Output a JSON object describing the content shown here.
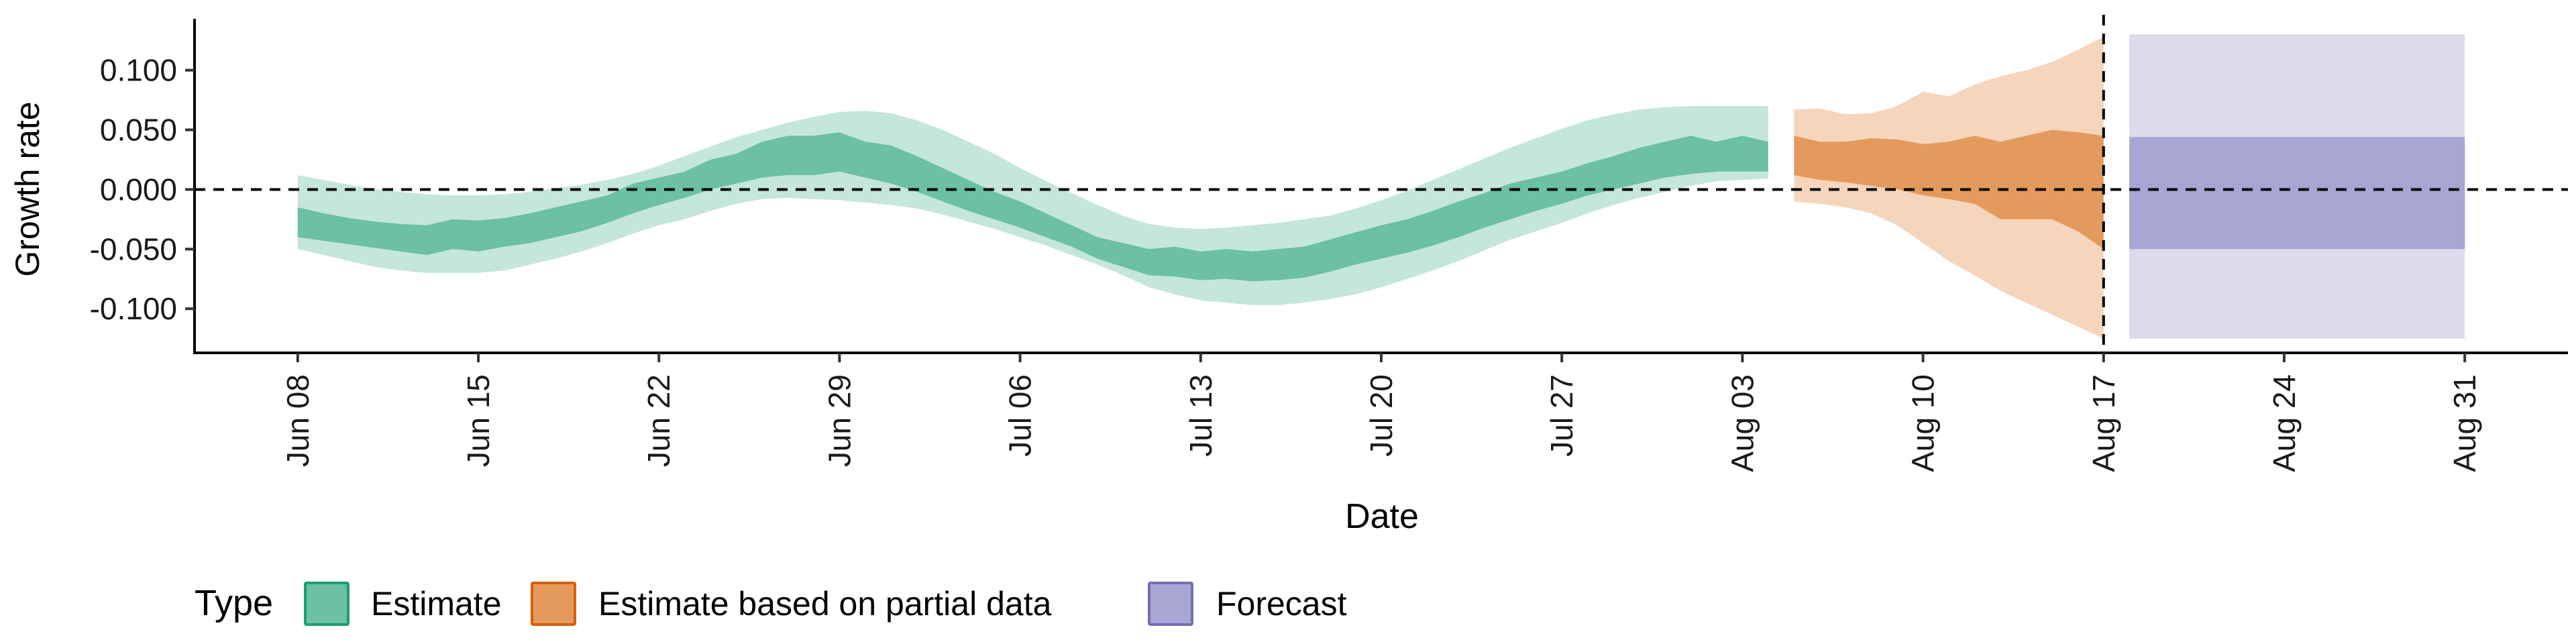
{
  "chart_data": {
    "type": "area",
    "xlabel": "Date",
    "ylabel": "Growth rate",
    "x_ticks": [
      "Jun 08",
      "Jun 15",
      "Jun 22",
      "Jun 29",
      "Jul 06",
      "Jul 13",
      "Jul 20",
      "Jul 27",
      "Aug 03",
      "Aug 10",
      "Aug 17",
      "Aug 24",
      "Aug 31"
    ],
    "y_ticks": [
      "0.100",
      "0.050",
      "0.000",
      "-0.050",
      "-0.100"
    ],
    "y_tick_values": [
      0.1,
      0.05,
      0.0,
      -0.05,
      -0.1
    ],
    "xlim": [
      "2020-06-04",
      "2020-09-04"
    ],
    "ylim": [
      -0.137,
      0.142
    ],
    "reference_lines": {
      "horizontal_y": 0.0,
      "vertical_x": "2020-08-17",
      "style": "dashed"
    },
    "legend": {
      "title": "Type",
      "position": "bottom-left",
      "items": [
        {
          "label": "Estimate",
          "fill": "#6cc0a4",
          "stroke": "#1b9e77"
        },
        {
          "label": "Estimate based on partial data",
          "fill": "#e59a5d",
          "stroke": "#d95f02"
        },
        {
          "label": "Forecast",
          "fill": "#a8a6d3",
          "stroke": "#7570b3"
        }
      ]
    },
    "series": [
      {
        "name": "Estimate",
        "colors": {
          "outer": "#c5e6dc",
          "inner": "#6cc0a4"
        },
        "x": [
          "2020-06-08",
          "2020-06-09",
          "2020-06-10",
          "2020-06-11",
          "2020-06-12",
          "2020-06-13",
          "2020-06-14",
          "2020-06-15",
          "2020-06-16",
          "2020-06-17",
          "2020-06-18",
          "2020-06-19",
          "2020-06-20",
          "2020-06-21",
          "2020-06-22",
          "2020-06-23",
          "2020-06-24",
          "2020-06-25",
          "2020-06-26",
          "2020-06-27",
          "2020-06-28",
          "2020-06-29",
          "2020-06-30",
          "2020-07-01",
          "2020-07-02",
          "2020-07-03",
          "2020-07-04",
          "2020-07-05",
          "2020-07-06",
          "2020-07-07",
          "2020-07-08",
          "2020-07-09",
          "2020-07-10",
          "2020-07-11",
          "2020-07-12",
          "2020-07-13",
          "2020-07-14",
          "2020-07-15",
          "2020-07-16",
          "2020-07-17",
          "2020-07-18",
          "2020-07-19",
          "2020-07-20",
          "2020-07-21",
          "2020-07-22",
          "2020-07-23",
          "2020-07-24",
          "2020-07-25",
          "2020-07-26",
          "2020-07-27",
          "2020-07-28",
          "2020-07-29",
          "2020-07-30",
          "2020-07-31",
          "2020-08-01",
          "2020-08-02",
          "2020-08-03",
          "2020-08-04"
        ],
        "upper_90": [
          0.012,
          0.008,
          0.004,
          0.0,
          -0.002,
          -0.004,
          -0.005,
          -0.005,
          -0.004,
          -0.002,
          0.001,
          0.004,
          0.008,
          0.013,
          0.02,
          0.028,
          0.036,
          0.044,
          0.05,
          0.056,
          0.061,
          0.065,
          0.066,
          0.064,
          0.058,
          0.05,
          0.04,
          0.03,
          0.018,
          0.007,
          -0.003,
          -0.013,
          -0.022,
          -0.029,
          -0.032,
          -0.033,
          -0.032,
          -0.03,
          -0.028,
          -0.025,
          -0.022,
          -0.016,
          -0.009,
          -0.001,
          0.008,
          0.017,
          0.026,
          0.035,
          0.043,
          0.051,
          0.058,
          0.063,
          0.067,
          0.069,
          0.07,
          0.07,
          0.07,
          0.07
        ],
        "upper_50": [
          -0.015,
          -0.02,
          -0.024,
          -0.027,
          -0.029,
          -0.03,
          -0.025,
          -0.026,
          -0.024,
          -0.02,
          -0.015,
          -0.01,
          -0.005,
          0.005,
          0.01,
          0.015,
          0.025,
          0.03,
          0.04,
          0.045,
          0.045,
          0.048,
          0.04,
          0.037,
          0.028,
          0.018,
          0.008,
          -0.002,
          -0.01,
          -0.02,
          -0.03,
          -0.04,
          -0.045,
          -0.05,
          -0.048,
          -0.052,
          -0.05,
          -0.052,
          -0.05,
          -0.048,
          -0.042,
          -0.036,
          -0.03,
          -0.025,
          -0.018,
          -0.01,
          -0.003,
          0.005,
          0.01,
          0.015,
          0.022,
          0.028,
          0.035,
          0.04,
          0.045,
          0.04,
          0.045,
          0.04
        ],
        "lower_50": [
          -0.04,
          -0.043,
          -0.046,
          -0.049,
          -0.052,
          -0.055,
          -0.05,
          -0.052,
          -0.048,
          -0.045,
          -0.04,
          -0.035,
          -0.028,
          -0.02,
          -0.013,
          -0.007,
          0.0,
          0.005,
          0.01,
          0.012,
          0.012,
          0.015,
          0.01,
          0.005,
          -0.002,
          -0.01,
          -0.018,
          -0.025,
          -0.032,
          -0.04,
          -0.048,
          -0.058,
          -0.065,
          -0.072,
          -0.073,
          -0.076,
          -0.075,
          -0.077,
          -0.076,
          -0.074,
          -0.069,
          -0.063,
          -0.058,
          -0.053,
          -0.047,
          -0.04,
          -0.032,
          -0.025,
          -0.018,
          -0.012,
          -0.005,
          0.0,
          0.005,
          0.01,
          0.013,
          0.015,
          0.015,
          0.015
        ],
        "lower_90": [
          -0.05,
          -0.055,
          -0.06,
          -0.065,
          -0.068,
          -0.07,
          -0.07,
          -0.07,
          -0.068,
          -0.063,
          -0.058,
          -0.052,
          -0.045,
          -0.037,
          -0.03,
          -0.025,
          -0.018,
          -0.012,
          -0.008,
          -0.007,
          -0.008,
          -0.009,
          -0.011,
          -0.013,
          -0.016,
          -0.021,
          -0.027,
          -0.033,
          -0.04,
          -0.047,
          -0.055,
          -0.063,
          -0.072,
          -0.082,
          -0.088,
          -0.093,
          -0.095,
          -0.097,
          -0.097,
          -0.095,
          -0.092,
          -0.088,
          -0.082,
          -0.075,
          -0.068,
          -0.06,
          -0.051,
          -0.042,
          -0.035,
          -0.028,
          -0.02,
          -0.013,
          -0.007,
          -0.002,
          0.003,
          0.007,
          0.008,
          0.009
        ]
      },
      {
        "name": "Estimate based on partial data",
        "colors": {
          "outer": "#f5d6bd",
          "inner": "#e59a5d"
        },
        "x": [
          "2020-08-05",
          "2020-08-06",
          "2020-08-07",
          "2020-08-08",
          "2020-08-09",
          "2020-08-10",
          "2020-08-11",
          "2020-08-12",
          "2020-08-13",
          "2020-08-14",
          "2020-08-15",
          "2020-08-16",
          "2020-08-17"
        ],
        "upper_90": [
          0.067,
          0.068,
          0.063,
          0.064,
          0.07,
          0.082,
          0.078,
          0.088,
          0.095,
          0.1,
          0.107,
          0.117,
          0.128
        ],
        "upper_50": [
          0.045,
          0.04,
          0.04,
          0.043,
          0.042,
          0.038,
          0.04,
          0.045,
          0.04,
          0.045,
          0.05,
          0.048,
          0.045
        ],
        "lower_50": [
          0.012,
          0.008,
          0.006,
          0.003,
          0.0,
          -0.005,
          -0.008,
          -0.012,
          -0.025,
          -0.025,
          -0.025,
          -0.035,
          -0.05
        ],
        "lower_90": [
          -0.01,
          -0.012,
          -0.015,
          -0.02,
          -0.03,
          -0.045,
          -0.06,
          -0.072,
          -0.085,
          -0.095,
          -0.105,
          -0.115,
          -0.125
        ]
      },
      {
        "name": "Forecast",
        "colors": {
          "outer": "#dcdbed",
          "inner": "#a8a6d3"
        },
        "x": [
          "2020-08-18",
          "2020-08-31"
        ],
        "upper_90": [
          0.13,
          0.13
        ],
        "upper_50": [
          0.044,
          0.044
        ],
        "lower_50": [
          -0.05,
          -0.05
        ],
        "lower_90": [
          -0.125,
          -0.125
        ]
      }
    ]
  }
}
